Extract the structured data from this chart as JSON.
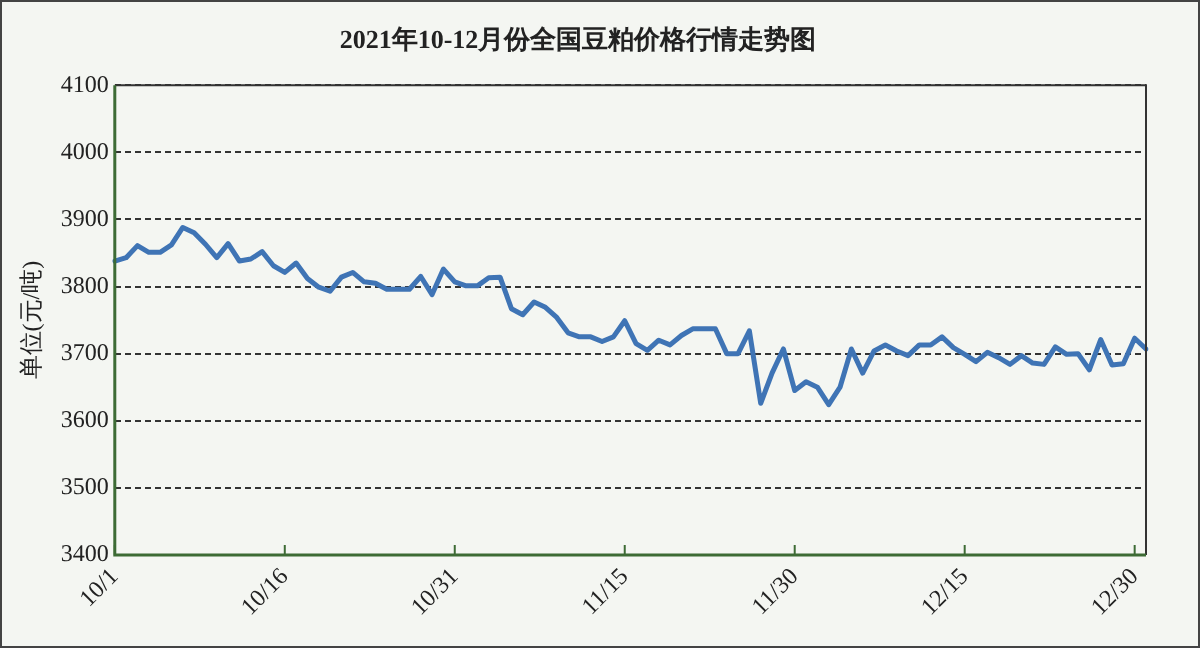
{
  "chart_data": {
    "type": "line",
    "title": "2021年10-12月份全国豆粕价格行情走势图",
    "ylabel": "单位(元/吨)",
    "categories": [
      "10/1",
      null,
      null,
      null,
      null,
      null,
      null,
      null,
      null,
      null,
      null,
      null,
      null,
      null,
      null,
      "10/16",
      null,
      null,
      null,
      null,
      null,
      null,
      null,
      null,
      null,
      null,
      null,
      null,
      null,
      null,
      "10/31",
      null,
      null,
      null,
      null,
      null,
      null,
      null,
      null,
      null,
      null,
      null,
      null,
      null,
      null,
      "11/15",
      null,
      null,
      null,
      null,
      null,
      null,
      null,
      null,
      null,
      null,
      null,
      null,
      null,
      null,
      "11/30",
      null,
      null,
      null,
      null,
      null,
      null,
      null,
      null,
      null,
      null,
      null,
      null,
      null,
      null,
      "12/15",
      null,
      null,
      null,
      null,
      null,
      null,
      null,
      null,
      null,
      null,
      null,
      null,
      null,
      null,
      "12/30",
      null
    ],
    "series": [
      {
        "color": "#3f74b5",
        "values": [
          3838,
          3843,
          3861,
          3851,
          3851,
          3862,
          3888,
          3880,
          3863,
          3843,
          3864,
          3838,
          3841,
          3852,
          3831,
          3821,
          3835,
          3812,
          3799,
          3793,
          3814,
          3821,
          3807,
          3805,
          3796,
          3796,
          3796,
          3815,
          3788,
          3826,
          3807,
          3801,
          3801,
          3813,
          3814,
          3767,
          3758,
          3777,
          3769,
          3754,
          3731,
          3725,
          3725,
          3718,
          3725,
          3749,
          3715,
          3705,
          3720,
          3713,
          3727,
          3737,
          3737,
          3737,
          3700,
          3700,
          3734,
          3626,
          3671,
          3707,
          3645,
          3658,
          3650,
          3624,
          3650,
          3707,
          3671,
          3704,
          3713,
          3704,
          3697,
          3713,
          3713,
          3725,
          3709,
          3699,
          3688,
          3702,
          3694,
          3684,
          3697,
          3686,
          3684,
          3710,
          3699,
          3700,
          3676,
          3721,
          3683,
          3685,
          3723,
          3707
        ]
      }
    ],
    "ylim": [
      3400,
      4100
    ],
    "yticks": [
      3400,
      3500,
      3600,
      3700,
      3800,
      3900,
      4000,
      4100
    ],
    "grid": "y",
    "marker": "none",
    "line_style": "solid"
  }
}
